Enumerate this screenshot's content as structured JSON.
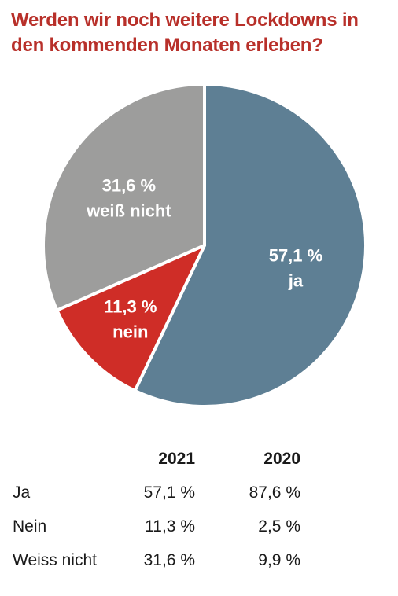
{
  "title": {
    "line1": "Werden wir noch weitere Lockdowns in",
    "line2": "den kommenden Monaten erleben?"
  },
  "colors": {
    "title": "#b8302a",
    "ja": "#5e7f94",
    "nein": "#cf2d27",
    "weiss_nicht": "#9d9d9c"
  },
  "chart_data": [
    {
      "type": "pie",
      "slices": [
        {
          "key": "ja",
          "value": 57.1,
          "label_value": "57,1 %",
          "label_name": "ja",
          "color": "#5e7f94"
        },
        {
          "key": "nein",
          "value": 11.3,
          "label_value": "11,3 %",
          "label_name": "nein",
          "color": "#cf2d27"
        },
        {
          "key": "weiss_nicht",
          "value": 31.6,
          "label_value": "31,6 %",
          "label_name": "weiß nicht",
          "color": "#9d9d9c"
        }
      ]
    },
    {
      "type": "table",
      "columns": [
        "",
        "2021",
        "2020"
      ],
      "rows": [
        {
          "label": "Ja",
          "values": [
            "57,1 %",
            "87,6 %"
          ]
        },
        {
          "label": "Nein",
          "values": [
            "11,3 %",
            "2,5 %"
          ]
        },
        {
          "label": "Weiss nicht",
          "values": [
            "31,6 %",
            "9,9 %"
          ]
        }
      ]
    }
  ]
}
